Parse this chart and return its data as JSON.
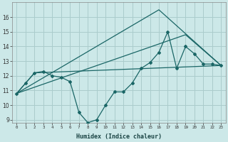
{
  "title": "",
  "xlabel": "Humidex (Indice chaleur)",
  "ylabel": "",
  "background_color": "#cce8e8",
  "grid_color": "#aacccc",
  "line_color": "#1a6666",
  "x_values": [
    0,
    1,
    2,
    3,
    4,
    5,
    6,
    7,
    8,
    9,
    10,
    11,
    12,
    13,
    14,
    15,
    16,
    17,
    18,
    19,
    20,
    21,
    22,
    23
  ],
  "series1": [
    10.8,
    11.5,
    12.2,
    12.3,
    12.0,
    11.9,
    11.6,
    9.5,
    8.8,
    9.0,
    10.0,
    10.9,
    10.9,
    11.5,
    12.5,
    12.9,
    13.6,
    15.0,
    12.5,
    14.0,
    13.5,
    12.8,
    12.8,
    12.7
  ],
  "series2_x": [
    0,
    2,
    23
  ],
  "series2_y": [
    10.8,
    12.2,
    12.7
  ],
  "series3_x": [
    0,
    16,
    23
  ],
  "series3_y": [
    10.8,
    16.5,
    12.7
  ],
  "series4_x": [
    0,
    19,
    23
  ],
  "series4_y": [
    10.8,
    14.8,
    12.7
  ],
  "ylim": [
    8.8,
    17.0
  ],
  "xlim": [
    -0.5,
    23.5
  ],
  "yticks": [
    9,
    10,
    11,
    12,
    13,
    14,
    15,
    16
  ],
  "xtick_labels": [
    "0",
    "1",
    "2",
    "3",
    "4",
    "5",
    "6",
    "7",
    "8",
    "9",
    "10",
    "11",
    "12",
    "13",
    "14",
    "15",
    "16",
    "17",
    "18",
    "19",
    "20",
    "21",
    "22",
    "23"
  ]
}
